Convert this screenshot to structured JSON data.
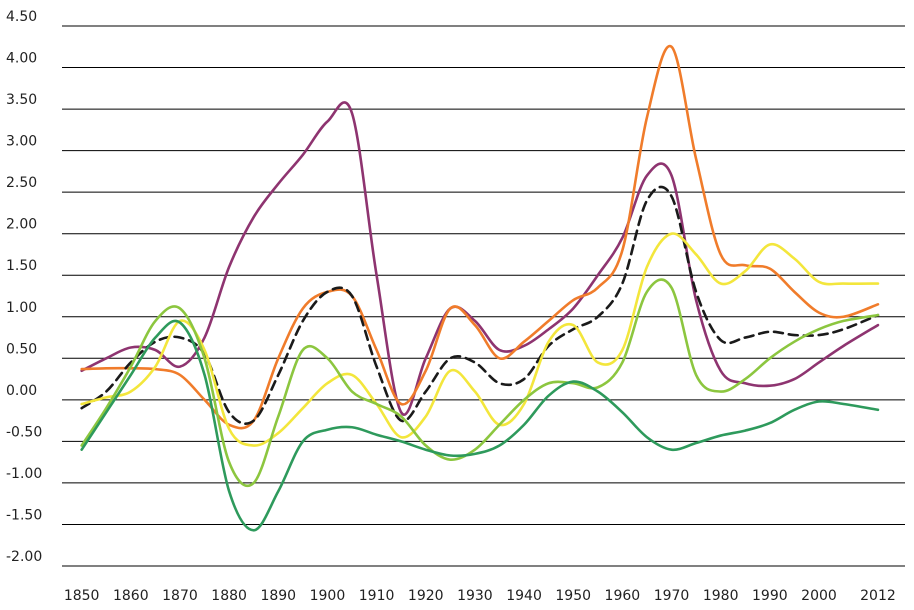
{
  "chart_data": {
    "type": "line",
    "x": [
      1850,
      1855,
      1860,
      1865,
      1870,
      1875,
      1880,
      1885,
      1890,
      1895,
      1900,
      1905,
      1910,
      1915,
      1920,
      1925,
      1930,
      1935,
      1940,
      1945,
      1950,
      1955,
      1960,
      1965,
      1970,
      1975,
      1980,
      1985,
      1990,
      1995,
      2000,
      2005,
      2012
    ],
    "series": [
      {
        "color": "#8e3470",
        "values": [
          0.35,
          0.5,
          0.63,
          0.6,
          0.4,
          0.75,
          1.6,
          2.2,
          2.6,
          2.95,
          3.35,
          3.45,
          1.5,
          -0.15,
          0.5,
          1.1,
          0.95,
          0.6,
          0.65,
          0.85,
          1.1,
          1.5,
          1.95,
          2.7,
          2.7,
          1.2,
          0.35,
          0.2,
          0.17,
          0.25,
          0.45,
          0.65,
          0.9
        ]
      },
      {
        "color": "#f07c2b",
        "values": [
          0.37,
          0.38,
          0.38,
          0.37,
          0.3,
          0,
          -0.3,
          -0.25,
          0.5,
          1.1,
          1.3,
          1.25,
          0.6,
          -0.05,
          0.35,
          1.1,
          0.9,
          0.5,
          0.7,
          0.95,
          1.2,
          1.35,
          1.8,
          3.4,
          4.25,
          2.9,
          1.75,
          1.62,
          1.58,
          1.3,
          1.05,
          1.0,
          1.15
        ]
      },
      {
        "color": "#1a1a1a",
        "dashed": true,
        "values": [
          -0.1,
          0.1,
          0.45,
          0.7,
          0.75,
          0.55,
          -0.15,
          -0.25,
          0.3,
          0.95,
          1.3,
          1.25,
          0.4,
          -0.25,
          0.1,
          0.5,
          0.45,
          0.2,
          0.25,
          0.65,
          0.85,
          1.0,
          1.4,
          2.4,
          2.45,
          1.3,
          0.72,
          0.75,
          0.82,
          0.78,
          0.78,
          0.85,
          1.02
        ]
      },
      {
        "color": "#f3e63c",
        "values": [
          -0.05,
          0.03,
          0.1,
          0.4,
          0.95,
          0.6,
          -0.35,
          -0.55,
          -0.4,
          -0.1,
          0.2,
          0.3,
          -0.05,
          -0.45,
          -0.2,
          0.35,
          0.1,
          -0.3,
          -0.05,
          0.7,
          0.9,
          0.45,
          0.6,
          1.6,
          2.0,
          1.75,
          1.4,
          1.55,
          1.87,
          1.7,
          1.42,
          1.4,
          1.4
        ]
      },
      {
        "color": "#8cc63f",
        "values": [
          -0.55,
          -0.1,
          0.4,
          0.95,
          1.1,
          0.5,
          -0.75,
          -1.0,
          -0.2,
          0.6,
          0.5,
          0.1,
          -0.05,
          -0.2,
          -0.55,
          -0.72,
          -0.6,
          -0.3,
          0.0,
          0.2,
          0.2,
          0.15,
          0.45,
          1.3,
          1.35,
          0.3,
          0.1,
          0.25,
          0.5,
          0.7,
          0.85,
          0.95,
          1.02
        ]
      },
      {
        "color": "#2e9a5c",
        "values": [
          -0.6,
          -0.15,
          0.3,
          0.75,
          0.93,
          0.3,
          -1.1,
          -1.57,
          -1.1,
          -0.5,
          -0.36,
          -0.33,
          -0.42,
          -0.5,
          -0.6,
          -0.67,
          -0.65,
          -0.55,
          -0.3,
          0.05,
          0.22,
          0.1,
          -0.15,
          -0.45,
          -0.6,
          -0.52,
          -0.43,
          -0.37,
          -0.28,
          -0.12,
          -0.02,
          -0.05,
          -0.12
        ]
      }
    ],
    "xlim": [
      1846,
      2017.5
    ],
    "xticks": [
      1850,
      1860,
      1870,
      1880,
      1890,
      1900,
      1910,
      1920,
      1930,
      1940,
      1950,
      1960,
      1970,
      1980,
      1990,
      2000,
      2012
    ],
    "ylim": [
      -2,
      4.5
    ],
    "yticks": [
      {
        "value": -2,
        "label": "-2.00"
      },
      {
        "value": -1.5,
        "label": "-1.50"
      },
      {
        "value": -1,
        "label": "-1.00"
      },
      {
        "value": -0.5,
        "label": "-0.50"
      },
      {
        "value": 0,
        "label": "0.00"
      },
      {
        "value": 0.5,
        "label": "0.50"
      },
      {
        "value": 1,
        "label": "1.00"
      },
      {
        "value": 1.5,
        "label": "1.50"
      },
      {
        "value": 2,
        "label": "2.00"
      },
      {
        "value": 2.5,
        "label": "2.50"
      },
      {
        "value": 3,
        "label": "3.00"
      },
      {
        "value": 3.5,
        "label": "3.50"
      },
      {
        "value": 4,
        "label": "4.00"
      },
      {
        "value": 4.5,
        "label": "4.50"
      }
    ],
    "grid": true,
    "zero_line": true
  }
}
